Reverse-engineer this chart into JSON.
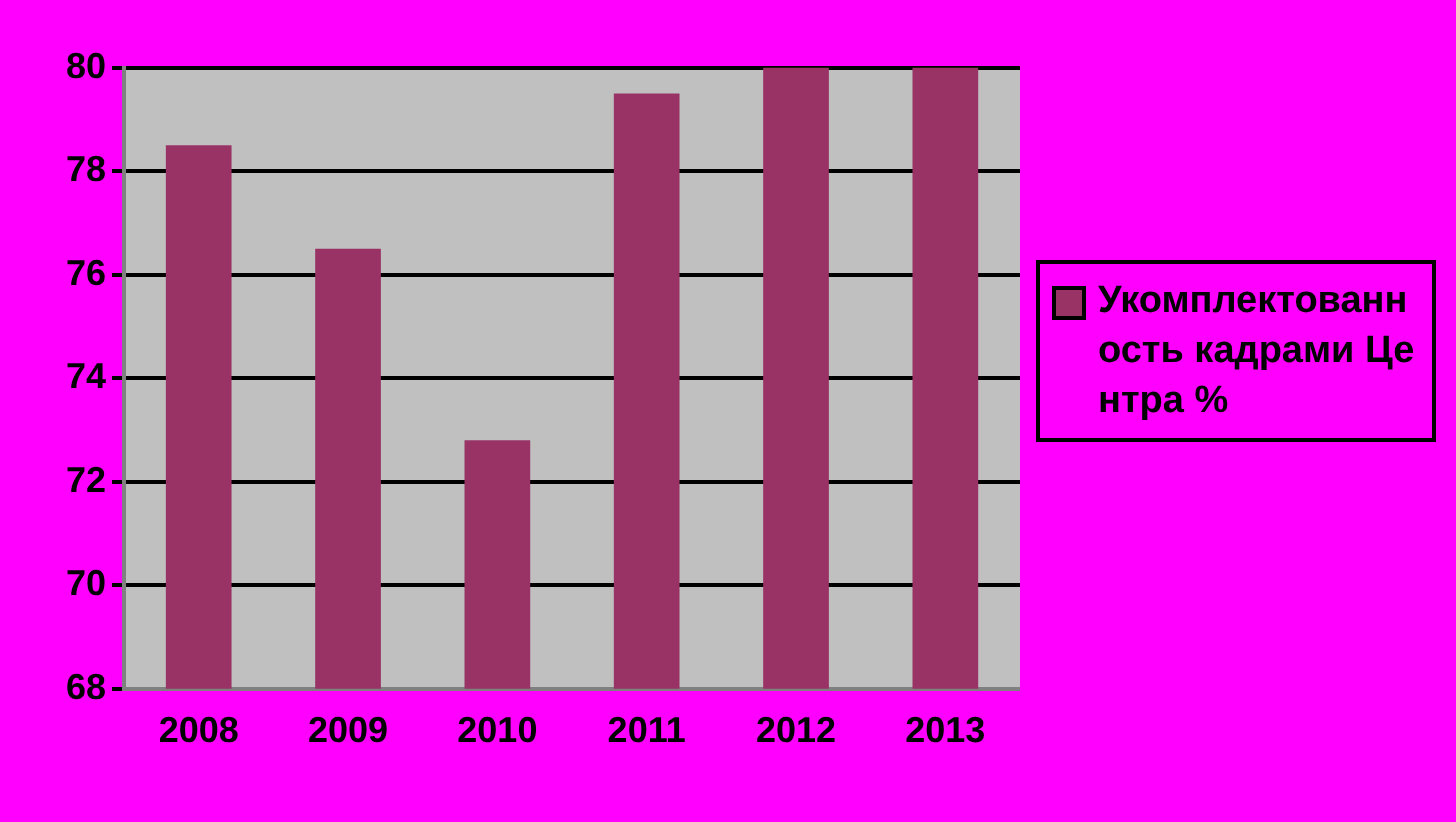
{
  "chart_data": {
    "type": "bar",
    "categories": [
      "2008",
      "2009",
      "2010",
      "2011",
      "2012",
      "2013"
    ],
    "series": [
      {
        "name": "Укомплектованность кадрами Центра %",
        "color": "#993366",
        "values": [
          78.5,
          76.5,
          72.8,
          79.5,
          80,
          80
        ]
      }
    ],
    "ylim": [
      68,
      80
    ],
    "yticks": [
      68,
      70,
      72,
      74,
      76,
      78,
      80
    ],
    "grid": "y",
    "legend": "right"
  }
}
